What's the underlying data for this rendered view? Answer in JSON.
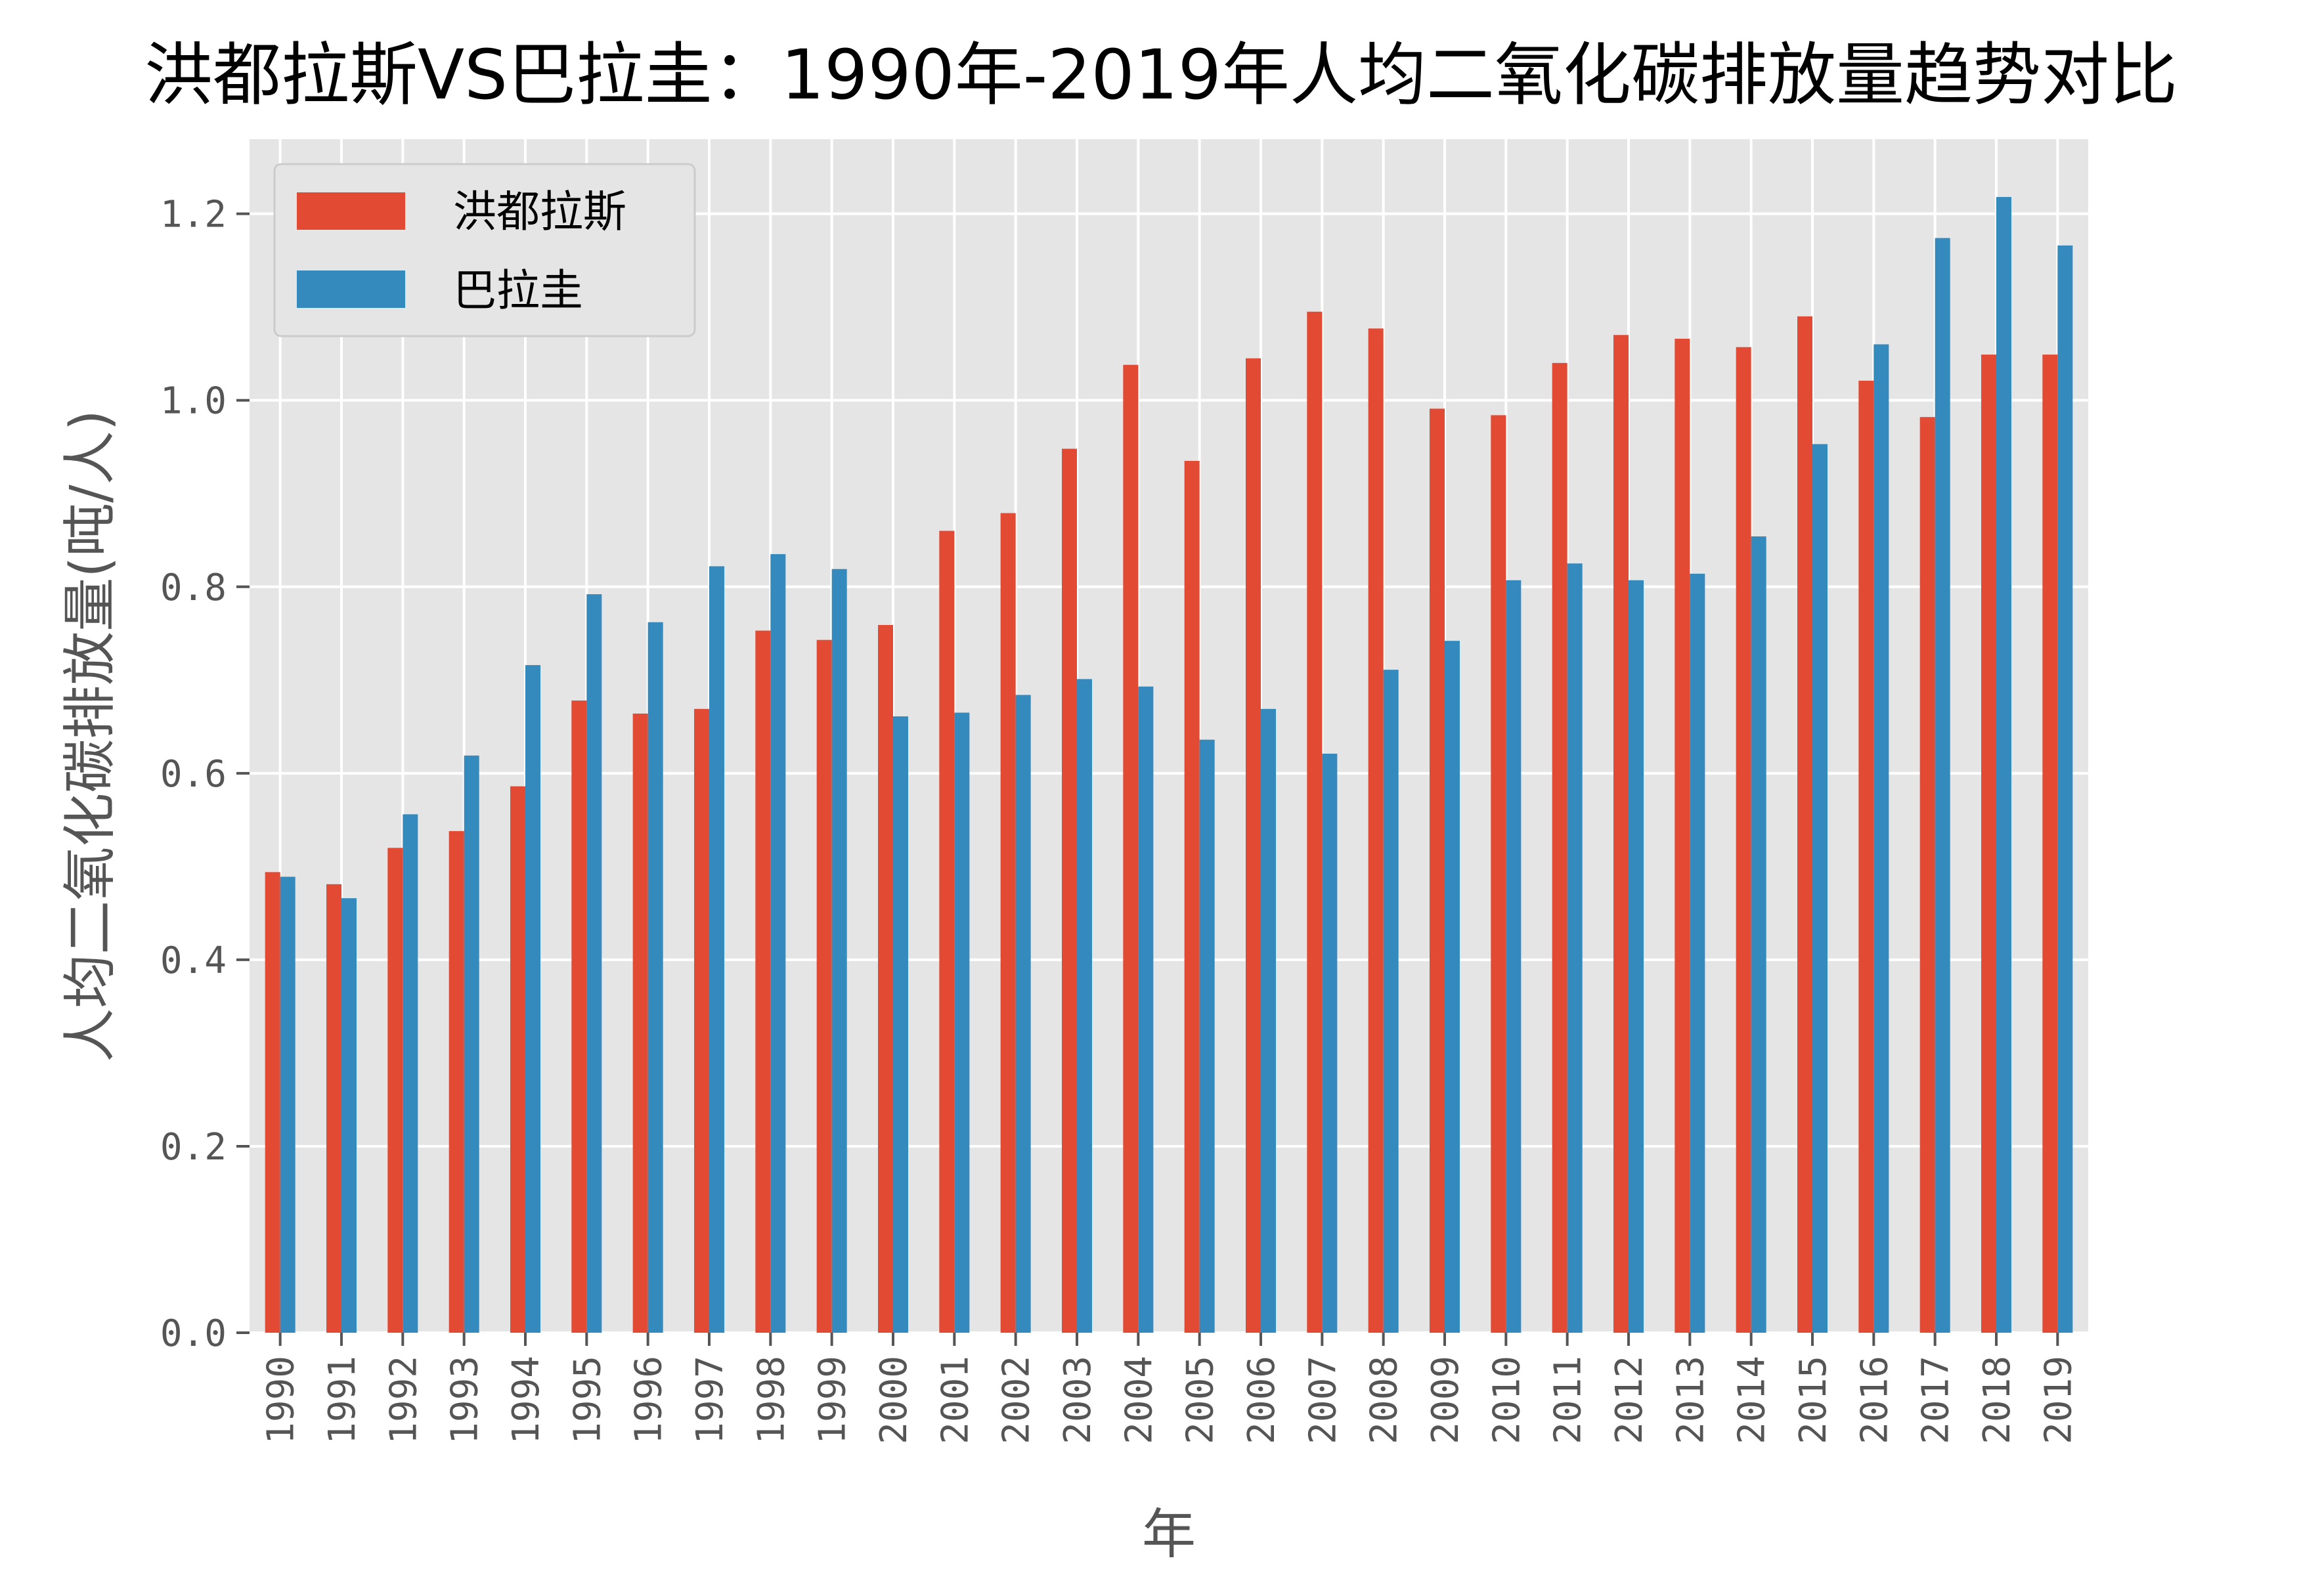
{
  "chart_data": {
    "type": "bar",
    "title": "洪都拉斯VS巴拉圭：1990年-2019年人均二氧化碳排放量趋势对比",
    "xlabel": "年",
    "ylabel": "人均二氧化碳排放量(吨/人)",
    "ylim": [
      0,
      1.28
    ],
    "yticks": [
      "0.0",
      "0.2",
      "0.4",
      "0.6",
      "0.8",
      "1.0",
      "1.2"
    ],
    "grid": true,
    "legend_position": "upper-left",
    "categories": [
      "1990",
      "1991",
      "1992",
      "1993",
      "1994",
      "1995",
      "1996",
      "1997",
      "1998",
      "1999",
      "2000",
      "2001",
      "2002",
      "2003",
      "2004",
      "2005",
      "2006",
      "2007",
      "2008",
      "2009",
      "2010",
      "2011",
      "2012",
      "2013",
      "2014",
      "2015",
      "2016",
      "2017",
      "2018",
      "2019"
    ],
    "series": [
      {
        "name": "洪都拉斯",
        "color": "#E24A33",
        "values": [
          0.494,
          0.481,
          0.52,
          0.538,
          0.586,
          0.678,
          0.664,
          0.669,
          0.753,
          0.743,
          0.759,
          0.86,
          0.879,
          0.948,
          1.038,
          0.935,
          1.045,
          1.095,
          1.077,
          0.991,
          0.984,
          1.04,
          1.07,
          1.066,
          1.057,
          1.09,
          1.021,
          0.982,
          1.049,
          1.049
        ]
      },
      {
        "name": "巴拉圭",
        "color": "#348ABD",
        "values": [
          0.489,
          0.466,
          0.556,
          0.619,
          0.716,
          0.792,
          0.762,
          0.822,
          0.835,
          0.819,
          0.661,
          0.665,
          0.684,
          0.701,
          0.693,
          0.636,
          0.669,
          0.621,
          0.711,
          0.742,
          0.807,
          0.825,
          0.807,
          0.814,
          0.854,
          0.953,
          1.06,
          1.174,
          1.218,
          1.166
        ]
      }
    ]
  }
}
